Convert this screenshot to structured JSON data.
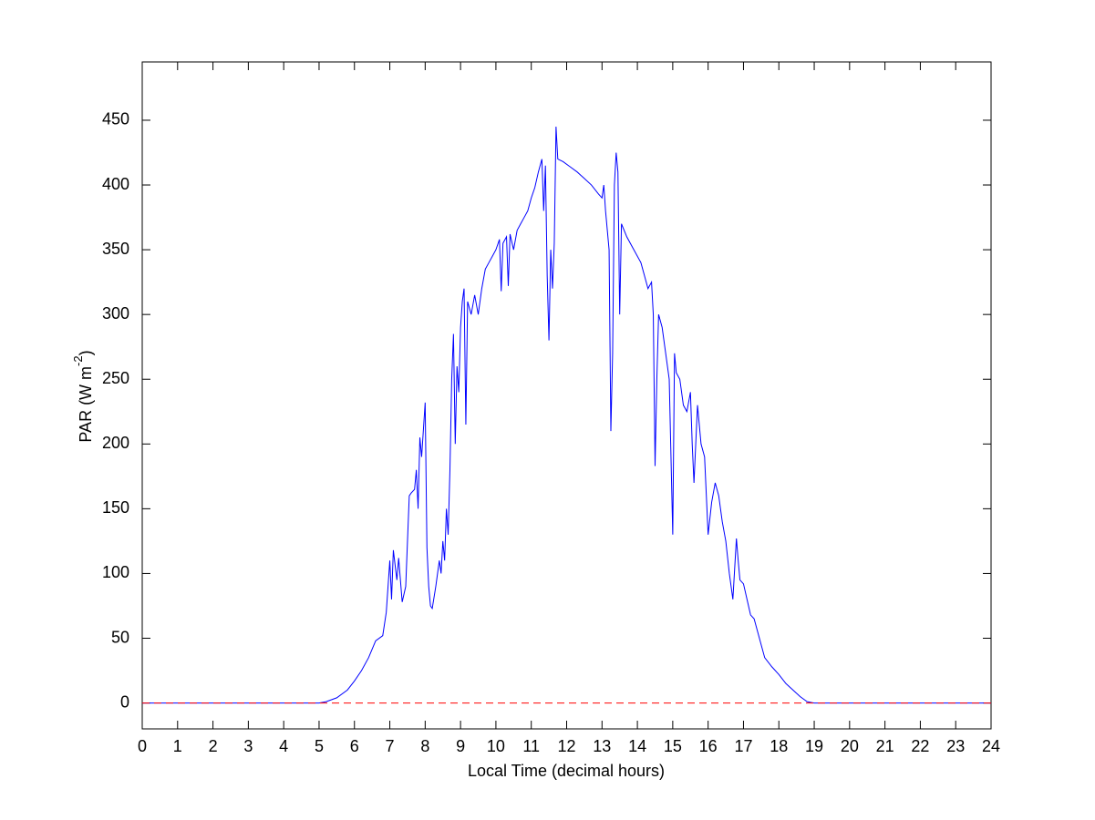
{
  "chart_data": {
    "type": "line",
    "xlabel": "Local Time (decimal hours)",
    "ylabel_parts": [
      "PAR (W m",
      "-2",
      ")"
    ],
    "xlim": [
      0,
      24
    ],
    "ylim": [
      -20,
      495
    ],
    "xticks": [
      0,
      1,
      2,
      3,
      4,
      5,
      6,
      7,
      8,
      9,
      10,
      11,
      12,
      13,
      14,
      15,
      16,
      17,
      18,
      19,
      20,
      21,
      22,
      23,
      24
    ],
    "yticks": [
      0,
      50,
      100,
      150,
      200,
      250,
      300,
      350,
      400,
      450
    ],
    "grid": false,
    "series": [
      {
        "color": "#0000ff",
        "dashed": false,
        "x": [
          0,
          5,
          5.2,
          5.5,
          5.8,
          6.0,
          6.2,
          6.4,
          6.6,
          6.8,
          6.9,
          7.0,
          7.05,
          7.1,
          7.2,
          7.25,
          7.35,
          7.45,
          7.55,
          7.6,
          7.7,
          7.75,
          7.8,
          7.85,
          7.9,
          8.0,
          8.05,
          8.1,
          8.15,
          8.2,
          8.3,
          8.4,
          8.45,
          8.5,
          8.55,
          8.6,
          8.65,
          8.7,
          8.75,
          8.8,
          8.85,
          8.9,
          8.95,
          9.0,
          9.05,
          9.1,
          9.15,
          9.2,
          9.3,
          9.4,
          9.5,
          9.6,
          9.7,
          9.8,
          9.9,
          10.0,
          10.1,
          10.15,
          10.2,
          10.3,
          10.35,
          10.4,
          10.5,
          10.6,
          10.7,
          10.8,
          10.9,
          11.0,
          11.1,
          11.2,
          11.3,
          11.35,
          11.4,
          11.45,
          11.5,
          11.55,
          11.6,
          11.65,
          11.7,
          11.75,
          11.9,
          12.1,
          12.3,
          12.5,
          12.7,
          12.9,
          13.0,
          13.05,
          13.1,
          13.2,
          13.25,
          13.3,
          13.35,
          13.4,
          13.45,
          13.5,
          13.55,
          13.7,
          13.9,
          14.1,
          14.2,
          14.3,
          14.4,
          14.45,
          14.5,
          14.55,
          14.6,
          14.7,
          14.8,
          14.9,
          15.0,
          15.05,
          15.1,
          15.2,
          15.3,
          15.4,
          15.5,
          15.55,
          15.6,
          15.7,
          15.8,
          15.9,
          15.95,
          16.0,
          16.1,
          16.2,
          16.3,
          16.4,
          16.5,
          16.6,
          16.7,
          16.8,
          16.85,
          16.9,
          17.0,
          17.1,
          17.2,
          17.3,
          17.4,
          17.5,
          17.6,
          17.8,
          18.0,
          18.2,
          18.4,
          18.6,
          18.8,
          19.0,
          24
        ],
        "values": [
          0,
          0,
          1,
          4,
          10,
          17,
          25,
          35,
          48,
          52,
          70,
          110,
          80,
          118,
          95,
          112,
          78,
          90,
          160,
          162,
          165,
          180,
          150,
          205,
          190,
          232,
          120,
          90,
          75,
          73,
          90,
          110,
          100,
          125,
          110,
          150,
          130,
          180,
          250,
          285,
          200,
          260,
          240,
          290,
          310,
          320,
          215,
          310,
          300,
          315,
          300,
          320,
          335,
          340,
          345,
          350,
          358,
          318,
          355,
          360,
          322,
          362,
          350,
          365,
          370,
          375,
          380,
          390,
          398,
          410,
          420,
          380,
          415,
          330,
          280,
          350,
          320,
          355,
          445,
          420,
          418,
          414,
          410,
          405,
          400,
          393,
          390,
          400,
          380,
          350,
          210,
          270,
          400,
          425,
          410,
          300,
          370,
          360,
          350,
          340,
          330,
          320,
          325,
          300,
          183,
          250,
          300,
          290,
          270,
          250,
          130,
          270,
          255,
          250,
          230,
          225,
          240,
          200,
          170,
          230,
          200,
          190,
          160,
          130,
          155,
          170,
          160,
          140,
          125,
          100,
          80,
          127,
          110,
          95,
          92,
          80,
          68,
          65,
          55,
          45,
          35,
          28,
          22,
          15,
          10,
          5,
          1,
          0,
          0
        ]
      },
      {
        "color": "#ff0000",
        "dashed": true,
        "x": [
          0,
          24
        ],
        "values": [
          0,
          0
        ]
      }
    ]
  }
}
